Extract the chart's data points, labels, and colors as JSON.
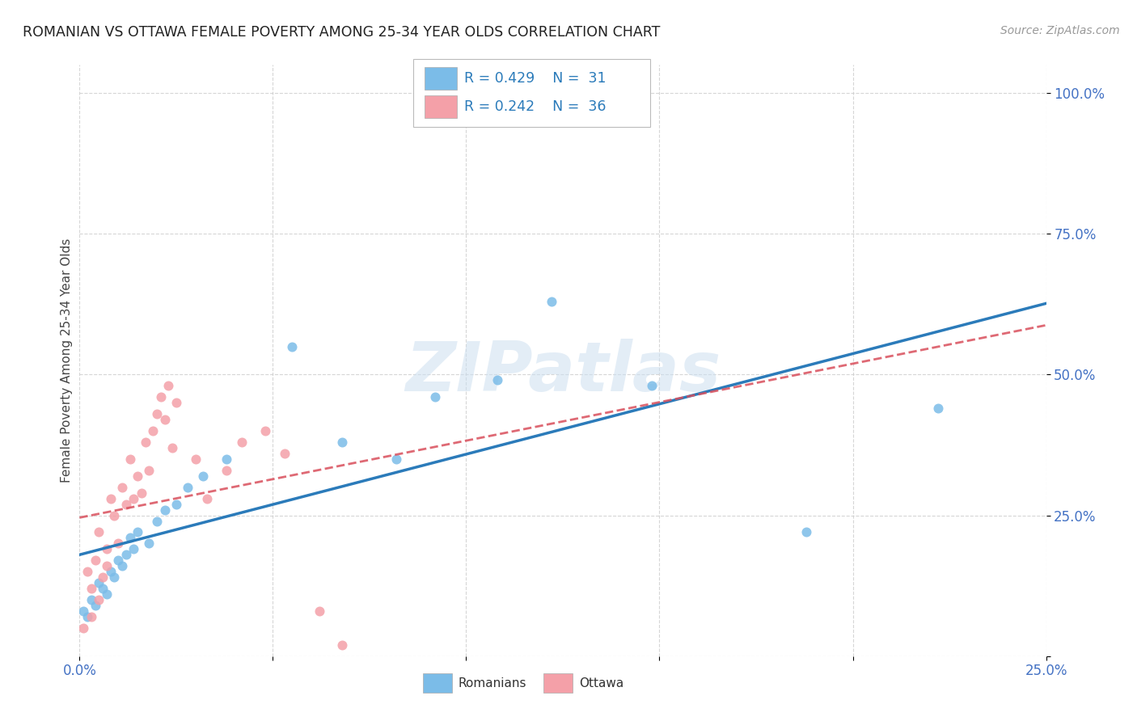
{
  "title": "ROMANIAN VS OTTAWA FEMALE POVERTY AMONG 25-34 YEAR OLDS CORRELATION CHART",
  "source": "Source: ZipAtlas.com",
  "ylabel": "Female Poverty Among 25-34 Year Olds",
  "xlim": [
    0.0,
    0.25
  ],
  "ylim": [
    0.0,
    1.05
  ],
  "color_romanian": "#7bbce8",
  "color_ottawa": "#f4a0a8",
  "line_color_romanian": "#2b7bba",
  "line_color_ottawa": "#d94f5c",
  "watermark": "ZIPatlas",
  "rom_x": [
    0.001,
    0.002,
    0.003,
    0.004,
    0.005,
    0.006,
    0.007,
    0.008,
    0.009,
    0.01,
    0.011,
    0.012,
    0.013,
    0.014,
    0.015,
    0.018,
    0.02,
    0.022,
    0.025,
    0.028,
    0.032,
    0.038,
    0.055,
    0.068,
    0.082,
    0.092,
    0.108,
    0.122,
    0.148,
    0.188,
    0.222
  ],
  "rom_y": [
    0.08,
    0.07,
    0.1,
    0.09,
    0.13,
    0.12,
    0.11,
    0.15,
    0.14,
    0.17,
    0.16,
    0.18,
    0.21,
    0.19,
    0.22,
    0.2,
    0.24,
    0.26,
    0.27,
    0.3,
    0.32,
    0.35,
    0.55,
    0.38,
    0.35,
    0.46,
    0.49,
    0.63,
    0.48,
    0.22,
    0.44
  ],
  "ott_x": [
    0.001,
    0.002,
    0.003,
    0.003,
    0.004,
    0.005,
    0.005,
    0.006,
    0.007,
    0.007,
    0.008,
    0.009,
    0.01,
    0.011,
    0.012,
    0.013,
    0.014,
    0.015,
    0.016,
    0.017,
    0.018,
    0.019,
    0.02,
    0.021,
    0.022,
    0.023,
    0.024,
    0.025,
    0.03,
    0.033,
    0.038,
    0.042,
    0.048,
    0.053,
    0.062,
    0.068
  ],
  "ott_y": [
    0.05,
    0.15,
    0.07,
    0.12,
    0.17,
    0.1,
    0.22,
    0.14,
    0.19,
    0.16,
    0.28,
    0.25,
    0.2,
    0.3,
    0.27,
    0.35,
    0.28,
    0.32,
    0.29,
    0.38,
    0.33,
    0.4,
    0.43,
    0.46,
    0.42,
    0.48,
    0.37,
    0.45,
    0.35,
    0.28,
    0.33,
    0.38,
    0.4,
    0.36,
    0.08,
    0.02
  ]
}
